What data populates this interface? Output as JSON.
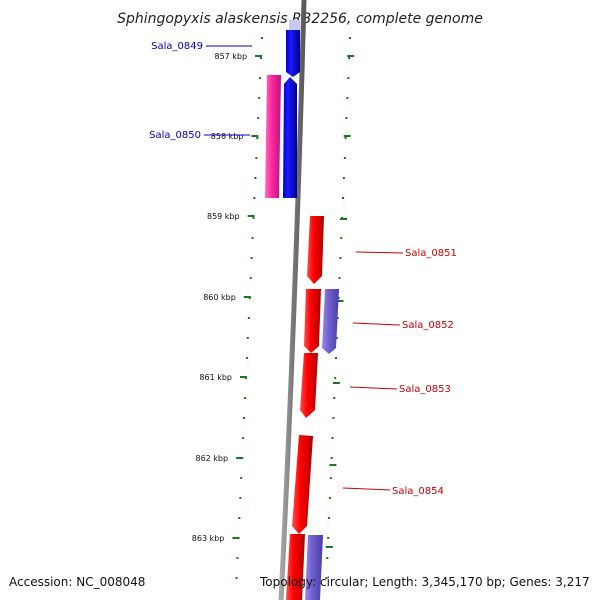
{
  "title": "Sphingopyxis alaskensis RB2256, complete genome",
  "accession_text": "Accession: NC_008048",
  "summary_text": "Topology: circular; Length: 3,345,170 bp; Genes: 3,217",
  "colors": {
    "forward_cds": "#ff0000",
    "forward_cds_alt": "#6f5fd0",
    "reverse_cds": "#0000ee",
    "reverse_cds_alt": "#ff2aa0",
    "backbone": "#808080",
    "tick": "#1a7a1a",
    "forward_label": "#cc0000",
    "reverse_label": "#0000bb"
  },
  "ticks": [
    "857 kbp",
    "858 kbp",
    "859 kbp",
    "860 kbp",
    "861 kbp",
    "862 kbp",
    "863 kbp"
  ],
  "genes": [
    {
      "id": "Sala_0849",
      "strand": "reverse"
    },
    {
      "id": "Sala_0850",
      "strand": "reverse"
    },
    {
      "id": "Sala_0851",
      "strand": "forward"
    },
    {
      "id": "Sala_0852",
      "strand": "forward"
    },
    {
      "id": "Sala_0853",
      "strand": "forward"
    },
    {
      "id": "Sala_0854",
      "strand": "forward"
    }
  ]
}
